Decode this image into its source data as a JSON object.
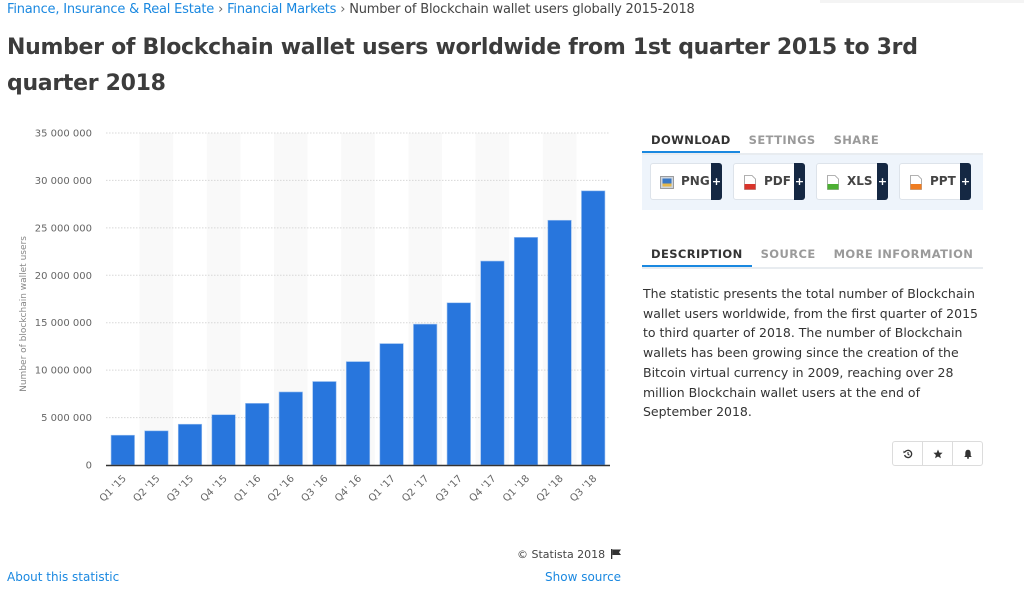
{
  "breadcrumb": {
    "items": [
      {
        "label": "Finance, Insurance & Real Estate"
      },
      {
        "label": "Financial Markets"
      }
    ],
    "separator": "›",
    "current": "Number of Blockchain wallet users globally 2015-2018"
  },
  "page_title": "Number of Blockchain wallet users worldwide from 1st quarter 2015 to 3rd quarter 2018",
  "chart_data": {
    "type": "bar",
    "title": "",
    "xlabel": "",
    "ylabel": "Number of blockchain wallet users",
    "ylim": [
      0,
      35000000
    ],
    "yticks": [
      0,
      5000000,
      10000000,
      15000000,
      20000000,
      25000000,
      30000000,
      35000000
    ],
    "ytick_labels": [
      "0",
      "5 000 000",
      "10 000 000",
      "15 000 000",
      "20 000 000",
      "25 000 000",
      "30 000 000",
      "35 000 000"
    ],
    "grid": true,
    "categories": [
      "Q1 '15",
      "Q2 '15",
      "Q3 '15",
      "Q4 '15",
      "Q1 '16",
      "Q2 '16",
      "Q3 '16",
      "Q4' 16",
      "Q1 '17",
      "Q2 '17",
      "Q3 '17",
      "Q4 '17",
      "Q1 '18",
      "Q2 '18",
      "Q3 '18"
    ],
    "values": [
      3140000,
      3600000,
      4300000,
      5300000,
      6500000,
      7700000,
      8800000,
      10900000,
      12800000,
      14850000,
      17100000,
      21500000,
      24000000,
      25800000,
      28900000
    ],
    "bar_color": "#2876dd"
  },
  "chart_footer": {
    "copyright": "© Statista 2018",
    "about_link": "About this statistic",
    "source_link": "Show source"
  },
  "download_panel": {
    "tabs": [
      {
        "label": "DOWNLOAD",
        "active": true
      },
      {
        "label": "SETTINGS",
        "active": false
      },
      {
        "label": "SHARE",
        "active": false
      }
    ],
    "buttons": [
      {
        "label": "PNG",
        "icon": "image-file-icon",
        "color": "#3a78c4"
      },
      {
        "label": "PDF",
        "icon": "pdf-file-icon",
        "color": "#d9342b"
      },
      {
        "label": "XLS",
        "icon": "xls-file-icon",
        "color": "#4caf33"
      },
      {
        "label": "PPT",
        "icon": "ppt-file-icon",
        "color": "#ef7d22"
      }
    ],
    "plus": "+"
  },
  "description_panel": {
    "tabs": [
      {
        "label": "DESCRIPTION",
        "active": true
      },
      {
        "label": "SOURCE",
        "active": false
      },
      {
        "label": "MORE INFORMATION",
        "active": false
      }
    ],
    "text": "The statistic presents the total number of Blockchain wallet users worldwide, from the first quarter of 2015 to third quarter of 2018. The number of Blockchain wallets has been growing since the creation of the Bitcoin virtual currency in 2009, reaching over 28 million Blockchain wallet users at the end of September 2018."
  },
  "actions": [
    {
      "name": "history-icon"
    },
    {
      "name": "star-icon"
    },
    {
      "name": "bell-icon"
    }
  ],
  "colors": {
    "link": "#1a88e0",
    "accent": "#1a88e0",
    "bar": "#2876dd",
    "dark_button": "#152843"
  }
}
